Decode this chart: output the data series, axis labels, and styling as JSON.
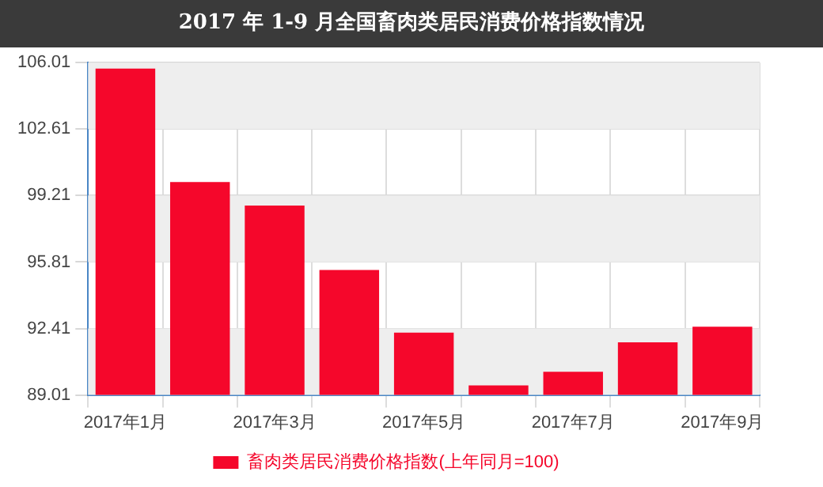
{
  "chart_data": {
    "type": "bar",
    "title": "2017 年 1-9 月全国畜肉类居民消费价格指数情况",
    "categories": [
      "2017年1月",
      null,
      "2017年3月",
      null,
      "2017年5月",
      null,
      "2017年7月",
      null,
      "2017年9月"
    ],
    "series": [
      {
        "name": "畜肉类居民消费价格指数(上年同月=100)",
        "color": "#f5072b",
        "values": [
          105.7,
          99.9,
          98.7,
          95.4,
          92.2,
          89.5,
          90.2,
          91.7,
          92.5
        ]
      }
    ],
    "ylim": [
      89.01,
      106.01
    ],
    "yticks": [
      89.01,
      92.41,
      95.81,
      99.21,
      102.61,
      106.01
    ],
    "grid": true,
    "legend": "bottom"
  }
}
